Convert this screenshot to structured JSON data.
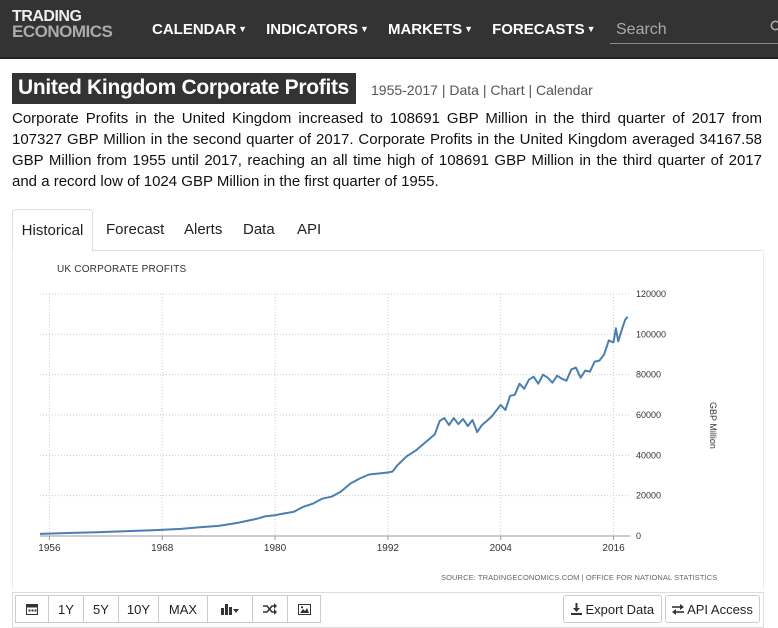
{
  "nav": {
    "logo_line1": "TRADING",
    "logo_line2": "ECONOMICS",
    "items": [
      {
        "label": "CALENDAR"
      },
      {
        "label": "INDICATORS"
      },
      {
        "label": "MARKETS"
      },
      {
        "label": "FORECASTS"
      }
    ],
    "search_placeholder": "Search"
  },
  "header": {
    "title": "United Kingdom Corporate Profits",
    "range": "1955-2017",
    "links": [
      "Data",
      "Chart",
      "Calendar"
    ]
  },
  "description": "Corporate Profits in the United Kingdom increased to 108691 GBP Million in the third quarter of 2017 from 107327 GBP Million in the second quarter of 2017. Corporate Profits in the United Kingdom averaged 34167.58 GBP Million from 1955 until 2017, reaching an all time high of 108691 GBP Million in the third quarter of 2017 and a record low of 1024 GBP Million in the first quarter of 1955.",
  "tabs": [
    {
      "label": "Historical",
      "active": true
    },
    {
      "label": "Forecast"
    },
    {
      "label": "Alerts"
    },
    {
      "label": "Data"
    },
    {
      "label": "API"
    }
  ],
  "chart_data": {
    "type": "line",
    "title": "UK CORPORATE PROFITS",
    "ylabel": "GBP Million",
    "xlabel": "",
    "xlim": [
      1955,
      2017.75
    ],
    "ylim": [
      0,
      120000
    ],
    "x_ticks": [
      "1956",
      "1968",
      "1980",
      "1992",
      "2004",
      "2016"
    ],
    "y_ticks": [
      "0",
      "20000",
      "40000",
      "60000",
      "80000",
      "100000",
      "120000"
    ],
    "grid": true,
    "line_color": "#4a7fb0",
    "series": [
      {
        "x": [
          1955,
          1958,
          1961,
          1964,
          1967,
          1970,
          1972,
          1974,
          1976,
          1978,
          1979,
          1980,
          1981,
          1982,
          1983,
          1984,
          1985,
          1986,
          1987,
          1988,
          1989,
          1990,
          1991,
          1992,
          1992.5,
          1993,
          1994,
          1995,
          1996,
          1997,
          1997.5,
          1998,
          1998.5,
          1999,
          1999.5,
          2000,
          2000.5,
          2001,
          2001.5,
          2002,
          2003,
          2004,
          2004.5,
          2005,
          2005.5,
          2006,
          2006.5,
          2007,
          2007.5,
          2008,
          2008.5,
          2009,
          2009.5,
          2010,
          2010.5,
          2011,
          2011.5,
          2012,
          2012.5,
          2013,
          2013.5,
          2014,
          2014.5,
          2015,
          2015.5,
          2016,
          2016.25,
          2016.5,
          2017,
          2017.25,
          2017.5
        ],
        "y": [
          1024,
          1500,
          1900,
          2400,
          2900,
          3500,
          4300,
          5000,
          6500,
          8500,
          9800,
          10300,
          11200,
          12000,
          14500,
          16000,
          18500,
          19500,
          22000,
          26000,
          28500,
          30500,
          31000,
          31500,
          32000,
          35000,
          39500,
          42500,
          46500,
          50500,
          57000,
          58500,
          55000,
          58500,
          55500,
          58000,
          54500,
          57500,
          51500,
          55000,
          59000,
          65000,
          62500,
          69500,
          70000,
          75500,
          73000,
          77500,
          79000,
          75500,
          80000,
          78500,
          76000,
          79500,
          78000,
          77000,
          82500,
          83500,
          78500,
          82000,
          81500,
          86500,
          87000,
          90000,
          97000,
          96000,
          103000,
          96500,
          104000,
          107327,
          108691
        ]
      }
    ]
  },
  "source_text": "SOURCE: TRADINGECONOMICS.COM | OFFICE FOR NATIONAL STATISTICS",
  "toolbar": {
    "ranges": [
      "1Y",
      "5Y",
      "10Y",
      "MAX"
    ],
    "export_label": "Export Data",
    "api_label": "API Access"
  }
}
